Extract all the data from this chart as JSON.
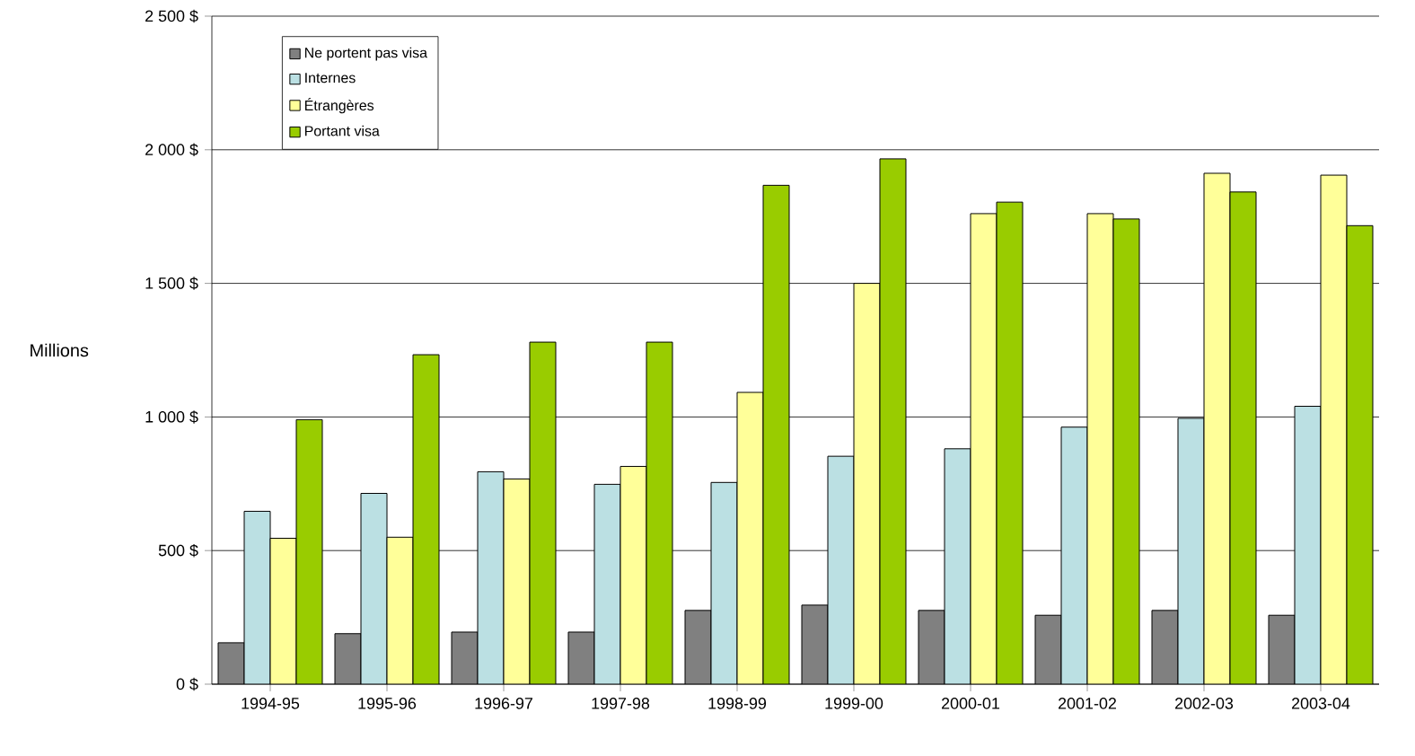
{
  "chart_data": {
    "type": "bar",
    "ylabel": "Millions",
    "categories": [
      "1994-95",
      "1995-96",
      "1996-97",
      "1997-98",
      "1998-99",
      "1999-00",
      "2000-01",
      "2001-02",
      "2002-03",
      "2003-04"
    ],
    "series": [
      {
        "name": "Ne portent pas visa",
        "color": "#808080",
        "values": [
          155,
          189,
          195,
          195,
          276,
          296,
          276,
          258,
          276,
          258
        ]
      },
      {
        "name": "Internes",
        "color": "#bbe0e3",
        "values": [
          647,
          714,
          795,
          748,
          755,
          853,
          881,
          962,
          995,
          1040
        ]
      },
      {
        "name": "Étrangères",
        "color": "#ffff99",
        "values": [
          546,
          550,
          768,
          815,
          1092,
          1500,
          1761,
          1761,
          1912,
          1905
        ]
      },
      {
        "name": "Portant visa",
        "color": "#99cc00",
        "values": [
          990,
          1233,
          1280,
          1280,
          1867,
          1966,
          1804,
          1741,
          1842,
          1716
        ]
      }
    ],
    "ylim": [
      0,
      2500
    ],
    "yticks": [
      {
        "value": 0,
        "label": "0 $"
      },
      {
        "value": 500,
        "label": "500 $"
      },
      {
        "value": 1000,
        "label": "1 000 $"
      },
      {
        "value": 1500,
        "label": "1 500 $"
      },
      {
        "value": 2000,
        "label": "2 000 $"
      },
      {
        "value": 2500,
        "label": "2 500 $"
      }
    ],
    "grid": "y",
    "legend": "top left"
  }
}
